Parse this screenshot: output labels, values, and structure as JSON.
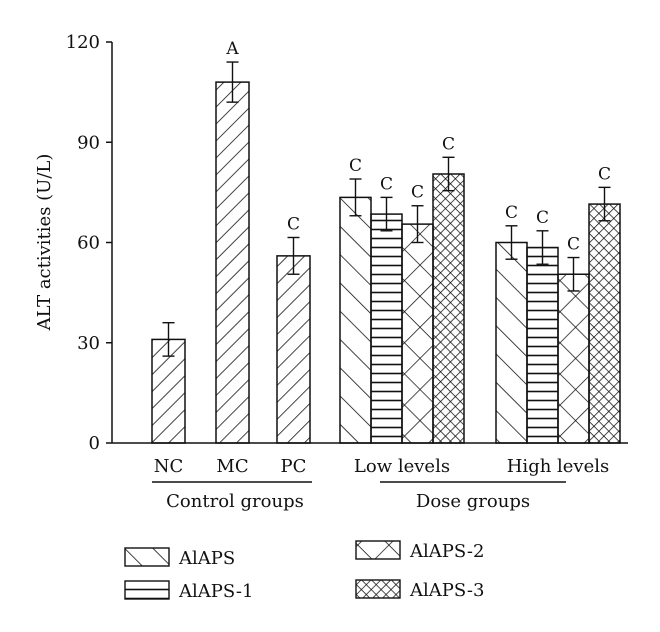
{
  "chart_data": {
    "type": "bar",
    "title": "",
    "ylabel": "ALT activities (U/L)",
    "xlabel": "",
    "ylim": [
      0,
      120
    ],
    "yticks": [
      0,
      30,
      60,
      90,
      120
    ],
    "grid": false,
    "legend_position": "bottom",
    "control_group": {
      "label": "Control groups",
      "bars": [
        {
          "category": "NC",
          "value": 31,
          "error": 5,
          "sig": ""
        },
        {
          "category": "MC",
          "value": 108,
          "error": 6,
          "sig": "A"
        },
        {
          "category": "PC",
          "value": 56,
          "error": 5.5,
          "sig": "C"
        }
      ]
    },
    "dose_group": {
      "label": "Dose groups",
      "levels": [
        "Low levels",
        "High levels"
      ],
      "series": [
        {
          "name": "AlAPS",
          "pattern": "diag-down",
          "values": [
            73.5,
            60
          ],
          "errors": [
            5.5,
            5
          ],
          "sig": [
            "C",
            "C"
          ]
        },
        {
          "name": "AlAPS-1",
          "pattern": "horiz",
          "values": [
            68.5,
            58.5
          ],
          "errors": [
            5,
            5
          ],
          "sig": [
            "C",
            "C"
          ]
        },
        {
          "name": "AlAPS-2",
          "pattern": "cross-wide",
          "values": [
            65.5,
            50.5
          ],
          "errors": [
            5.5,
            5
          ],
          "sig": [
            "C",
            "C"
          ]
        },
        {
          "name": "AlAPS-3",
          "pattern": "cross-dense",
          "values": [
            80.5,
            71.5
          ],
          "errors": [
            5,
            5
          ],
          "sig": [
            "C",
            "C"
          ]
        }
      ]
    }
  }
}
